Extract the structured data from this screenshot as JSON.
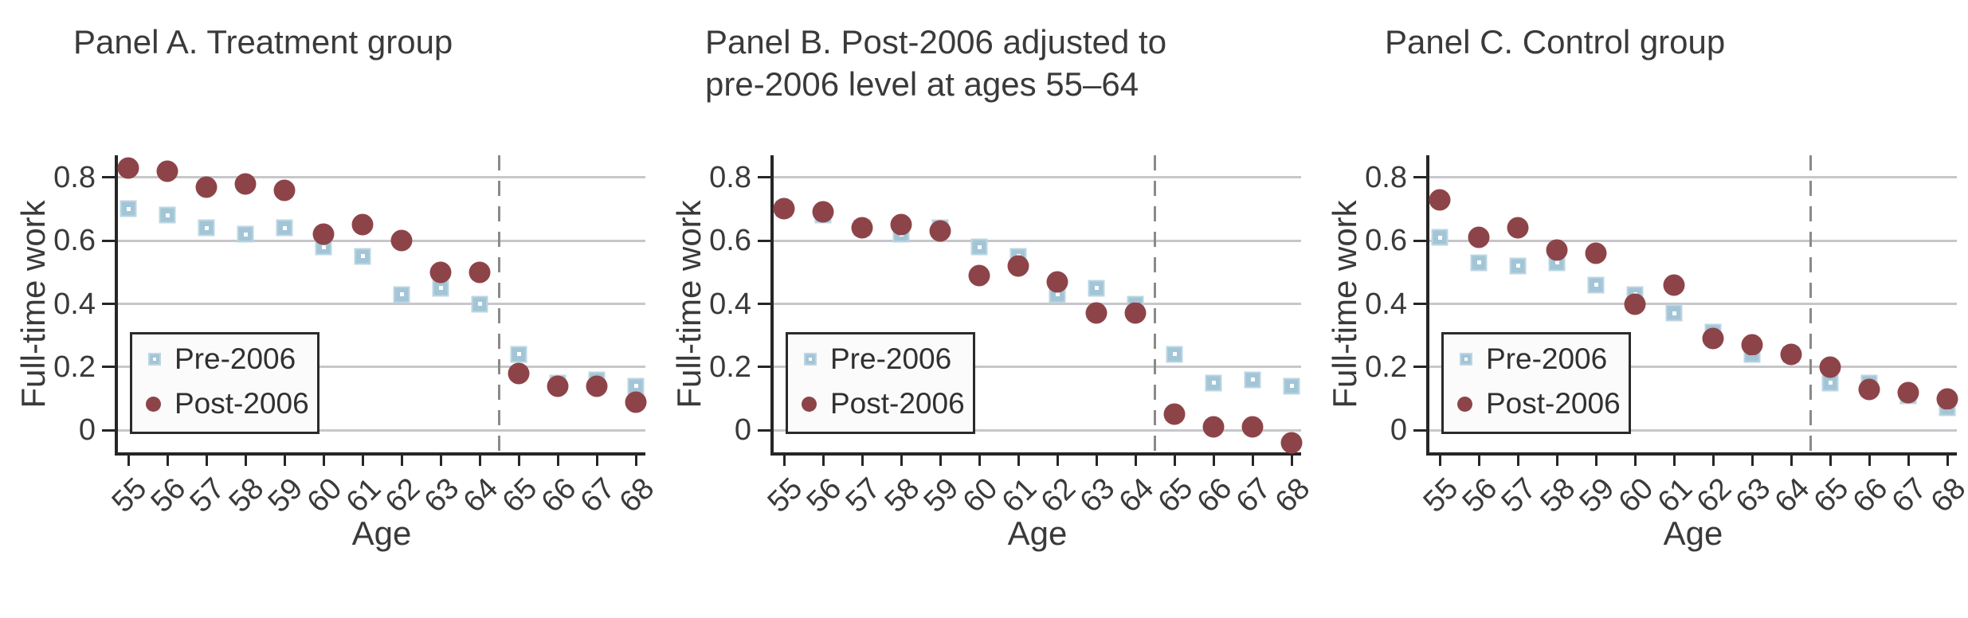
{
  "figure": {
    "ylabel": "Full-time work",
    "xlabel": "Age",
    "y_axis": {
      "ticks": [
        {
          "label": "0.8",
          "value": 0.8
        },
        {
          "label": "0.6",
          "value": 0.6
        },
        {
          "label": "0.4",
          "value": 0.4
        },
        {
          "label": "0.2",
          "value": 0.2
        },
        {
          "label": "0",
          "value": 0
        }
      ]
    },
    "colors": {
      "pre_marker": "#a2c5d7",
      "pre_marker_border": "#bdd6e2",
      "post_marker": "#8d4449",
      "gridline": "#c7c7cb",
      "axis": "#262626",
      "dashed_line": "#8a8a8a",
      "text": "#3a3a3a",
      "legend_bg": "#fbfbfb",
      "legend_border": "#2b2b2b"
    }
  },
  "chart_data": [
    {
      "type": "scatter",
      "title_line1": "Panel A. Treatment group",
      "title_line2": "",
      "xlabel": "Age",
      "ylabel": "Full-time work",
      "x": [
        55,
        56,
        57,
        58,
        59,
        60,
        61,
        62,
        63,
        64,
        65,
        66,
        67,
        68
      ],
      "ylim": [
        -0.07,
        0.87
      ],
      "yticks": [
        0.8,
        0.6,
        0.4,
        0.2,
        0
      ],
      "grid": "horizontal",
      "vline_x": 64.5,
      "legend_position": "lower left",
      "series": [
        {
          "name": "Pre-2006",
          "marker": "square",
          "color": "#a2c5d7",
          "values": [
            0.7,
            0.68,
            0.64,
            0.62,
            0.64,
            0.58,
            0.55,
            0.43,
            0.45,
            0.4,
            0.24,
            0.15,
            0.16,
            0.14
          ]
        },
        {
          "name": "Post-2006",
          "marker": "circle",
          "color": "#8d4449",
          "values": [
            0.83,
            0.82,
            0.77,
            0.78,
            0.76,
            0.62,
            0.65,
            0.6,
            0.5,
            0.5,
            0.18,
            0.14,
            0.14,
            0.09
          ]
        }
      ]
    },
    {
      "type": "scatter",
      "title_line1": "Panel B. Post-2006 adjusted to",
      "title_line2": "pre-2006 level at ages 55–64",
      "xlabel": "Age",
      "ylabel": "Full-time work",
      "x": [
        55,
        56,
        57,
        58,
        59,
        60,
        61,
        62,
        63,
        64,
        65,
        66,
        67,
        68
      ],
      "ylim": [
        -0.07,
        0.87
      ],
      "yticks": [
        0.8,
        0.6,
        0.4,
        0.2,
        0
      ],
      "grid": "horizontal",
      "vline_x": 64.5,
      "legend_position": "lower left",
      "series": [
        {
          "name": "Pre-2006",
          "marker": "square",
          "color": "#a2c5d7",
          "values": [
            0.7,
            0.68,
            0.64,
            0.62,
            0.64,
            0.58,
            0.55,
            0.43,
            0.45,
            0.4,
            0.24,
            0.15,
            0.16,
            0.14
          ]
        },
        {
          "name": "Post-2006",
          "marker": "circle",
          "color": "#8d4449",
          "values": [
            0.7,
            0.69,
            0.64,
            0.65,
            0.63,
            0.49,
            0.52,
            0.47,
            0.37,
            0.37,
            0.05,
            0.01,
            0.01,
            -0.04
          ]
        }
      ]
    },
    {
      "type": "scatter",
      "title_line1": "Panel C. Control group",
      "title_line2": "",
      "xlabel": "Age",
      "ylabel": "Full-time work",
      "x": [
        55,
        56,
        57,
        58,
        59,
        60,
        61,
        62,
        63,
        64,
        65,
        66,
        67,
        68
      ],
      "ylim": [
        -0.07,
        0.87
      ],
      "yticks": [
        0.8,
        0.6,
        0.4,
        0.2,
        0
      ],
      "grid": "horizontal",
      "vline_x": 64.5,
      "legend_position": "lower left",
      "series": [
        {
          "name": "Pre-2006",
          "marker": "square",
          "color": "#a2c5d7",
          "values": [
            0.61,
            0.53,
            0.52,
            0.53,
            0.46,
            0.43,
            0.37,
            0.31,
            0.24,
            0.24,
            0.15,
            0.15,
            0.11,
            0.07
          ]
        },
        {
          "name": "Post-2006",
          "marker": "circle",
          "color": "#8d4449",
          "values": [
            0.73,
            0.61,
            0.64,
            0.57,
            0.56,
            0.4,
            0.46,
            0.29,
            0.27,
            0.24,
            0.2,
            0.13,
            0.12,
            0.1
          ]
        }
      ]
    }
  ]
}
